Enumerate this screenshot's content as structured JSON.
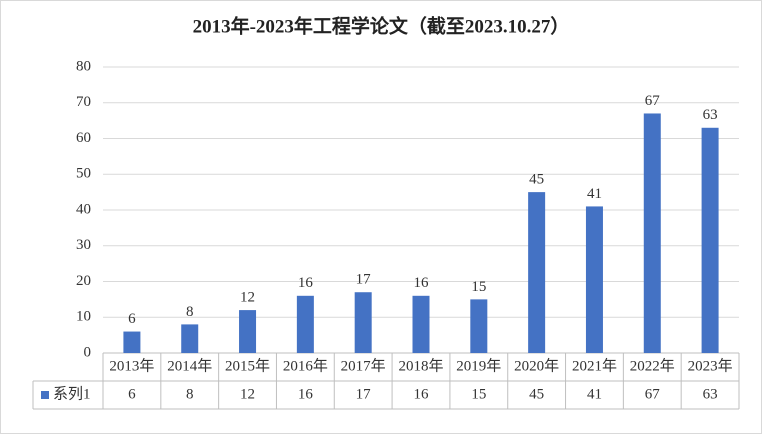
{
  "chart_data": {
    "type": "bar",
    "title": "2013年-2023年工程学论文（截至2023.10.27）",
    "categories": [
      "2013年",
      "2014年",
      "2015年",
      "2016年",
      "2017年",
      "2018年",
      "2019年",
      "2020年",
      "2021年",
      "2022年",
      "2023年"
    ],
    "series": [
      {
        "name": "系列1",
        "color": "#4472c4",
        "values": [
          6,
          8,
          12,
          16,
          17,
          16,
          15,
          45,
          41,
          67,
          63
        ]
      }
    ],
    "ylim": [
      0,
      80
    ],
    "yticks": [
      0,
      10,
      20,
      30,
      40,
      50,
      60,
      70,
      80
    ],
    "grid": true
  }
}
